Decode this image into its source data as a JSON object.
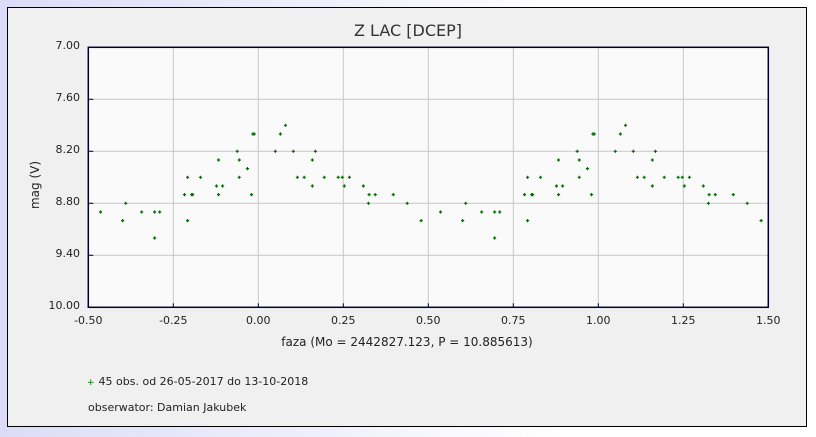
{
  "title": "Z LAC [DCEP]",
  "y_axis_label": "mag (V)",
  "x_axis_label": "faza (Mo = 2442827.123, P = 10.885613)",
  "y_ticks": [
    "7.00",
    "7.60",
    "8.20",
    "8.80",
    "9.40",
    "10.00"
  ],
  "x_ticks": [
    "-0.50",
    "-0.25",
    "0.00",
    "0.25",
    "0.50",
    "0.75",
    "1.00",
    "1.25",
    "1.50"
  ],
  "legend": {
    "marker": "+",
    "text": "45 obs. od 26-05-2017 do 13-10-2018",
    "observer": "obserwator: Damian Jakubek"
  },
  "colors": {
    "point": "#007000",
    "grid": "#c8c8c8",
    "axis": "#000033",
    "plot_bg": "#fafafa",
    "frame_bg": "#f0f0f0"
  },
  "chart_data": {
    "type": "scatter",
    "title": "Z LAC [DCEP]",
    "xlabel": "faza (Mo = 2442827.123, P = 10.885613)",
    "ylabel": "mag (V)",
    "xlim": [
      -0.5,
      1.5
    ],
    "ylim": [
      10.0,
      7.0
    ],
    "y_inverted": true,
    "grid": true,
    "phase_repeated_plus_one": true,
    "series": [
      {
        "name": "45 obs. od 26-05-2017 do 13-10-2018",
        "points": [
          [
            -0.464,
            8.9
          ],
          [
            -0.399,
            9.0
          ],
          [
            -0.39,
            8.8
          ],
          [
            -0.343,
            8.9
          ],
          [
            -0.305,
            8.9
          ],
          [
            -0.29,
            8.9
          ],
          [
            -0.305,
            9.2
          ],
          [
            -0.217,
            8.7
          ],
          [
            -0.208,
            8.5
          ],
          [
            -0.208,
            9.0
          ],
          [
            -0.196,
            8.7
          ],
          [
            -0.193,
            8.7
          ],
          [
            -0.17,
            8.5
          ],
          [
            -0.123,
            8.6
          ],
          [
            -0.117,
            8.3
          ],
          [
            -0.117,
            8.7
          ],
          [
            -0.105,
            8.6
          ],
          [
            -0.062,
            8.2
          ],
          [
            -0.056,
            8.3
          ],
          [
            -0.056,
            8.5
          ],
          [
            -0.032,
            8.4
          ],
          [
            -0.02,
            8.7
          ],
          [
            -0.016,
            8.0
          ],
          [
            -0.012,
            8.0
          ],
          [
            0.05,
            8.2
          ],
          [
            0.065,
            8.0
          ],
          [
            0.08,
            7.9
          ],
          [
            0.103,
            8.2
          ],
          [
            0.115,
            8.5
          ],
          [
            0.135,
            8.5
          ],
          [
            0.159,
            8.3
          ],
          [
            0.159,
            8.6
          ],
          [
            0.168,
            8.2
          ],
          [
            0.194,
            8.5
          ],
          [
            0.235,
            8.5
          ],
          [
            0.247,
            8.5
          ],
          [
            0.253,
            8.6
          ],
          [
            0.268,
            8.5
          ],
          [
            0.309,
            8.6
          ],
          [
            0.324,
            8.8
          ],
          [
            0.326,
            8.7
          ],
          [
            0.344,
            8.7
          ],
          [
            0.397,
            8.7
          ],
          [
            0.438,
            8.8
          ],
          [
            0.479,
            9.0
          ]
        ]
      }
    ]
  }
}
